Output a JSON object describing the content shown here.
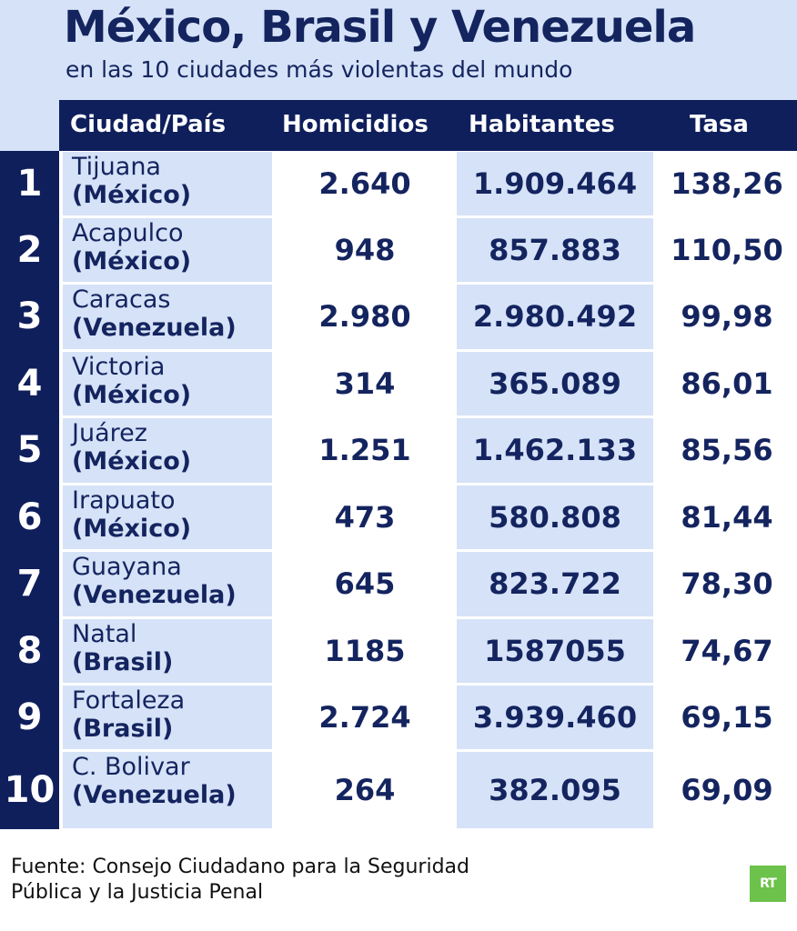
{
  "title": "México, Brasil y Venezuela",
  "subtitle": "en las 10 ciudades más violentas del mundo",
  "columns": {
    "city": "Ciudad/País",
    "homicides": "Homicidios",
    "inhabitants": "Habitantes",
    "rate": "Tasa"
  },
  "rows": [
    {
      "rank": "1",
      "city": "Tijuana",
      "country": "(México)",
      "homicides": "2.640",
      "inhabitants": "1.909.464",
      "rate": "138,26"
    },
    {
      "rank": "2",
      "city": "Acapulco",
      "country": "(México)",
      "homicides": "948",
      "inhabitants": "857.883",
      "rate": "110,50"
    },
    {
      "rank": "3",
      "city": "Caracas",
      "country": "(Venezuela)",
      "homicides": "2.980",
      "inhabitants": "2.980.492",
      "rate": "99,98"
    },
    {
      "rank": "4",
      "city": "Victoria",
      "country": "(México)",
      "homicides": "314",
      "inhabitants": "365.089",
      "rate": "86,01"
    },
    {
      "rank": "5",
      "city": "Juárez",
      "country": "(México)",
      "homicides": "1.251",
      "inhabitants": "1.462.133",
      "rate": "85,56"
    },
    {
      "rank": "6",
      "city": "Irapuato",
      "country": "(México)",
      "homicides": "473",
      "inhabitants": "580.808",
      "rate": "81,44"
    },
    {
      "rank": "7",
      "city": "Guayana",
      "country": "(Venezuela)",
      "homicides": "645",
      "inhabitants": "823.722",
      "rate": "78,30"
    },
    {
      "rank": "8",
      "city": "Natal",
      "country": "(Brasil)",
      "homicides": "1185",
      "inhabitants": "1587055",
      "rate": "74,67"
    },
    {
      "rank": "9",
      "city": "Fortaleza",
      "country": "(Brasil)",
      "homicides": "2.724",
      "inhabitants": "3.939.460",
      "rate": "69,15"
    },
    {
      "rank": "10",
      "city": "C. Bolivar",
      "country": "(Venezuela)",
      "homicides": "264",
      "inhabitants": "382.095",
      "rate": "69,09"
    }
  ],
  "source": {
    "line1": "Fuente: Consejo Ciudadano para la Seguridad",
    "line2": "Pública y la Justicia Penal"
  },
  "logo": {
    "text": "RT",
    "color": "#6cc24a"
  },
  "colors": {
    "navy": "#0f1f5c",
    "light_blue": "#d6e2f7",
    "text": "#14245f"
  }
}
